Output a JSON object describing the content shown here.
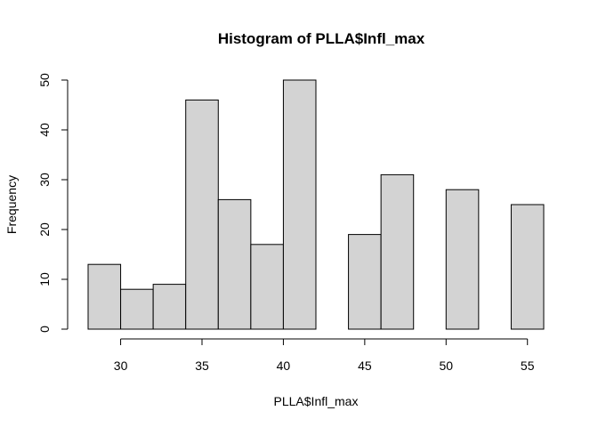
{
  "chart_data": {
    "type": "bar",
    "title": "Histogram of PLLA$Infl_max",
    "xlabel": "PLLA$Infl_max",
    "ylabel": "Frequency",
    "bins": [
      {
        "from": 28,
        "to": 30,
        "count": 13
      },
      {
        "from": 30,
        "to": 32,
        "count": 8
      },
      {
        "from": 32,
        "to": 34,
        "count": 9
      },
      {
        "from": 34,
        "to": 36,
        "count": 46
      },
      {
        "from": 36,
        "to": 38,
        "count": 26
      },
      {
        "from": 38,
        "to": 40,
        "count": 17
      },
      {
        "from": 40,
        "to": 42,
        "count": 50
      },
      {
        "from": 42,
        "to": 44,
        "count": 0
      },
      {
        "from": 44,
        "to": 46,
        "count": 19
      },
      {
        "from": 46,
        "to": 48,
        "count": 31
      },
      {
        "from": 48,
        "to": 50,
        "count": 0
      },
      {
        "from": 50,
        "to": 52,
        "count": 28
      },
      {
        "from": 52,
        "to": 54,
        "count": 0
      },
      {
        "from": 54,
        "to": 56,
        "count": 25
      }
    ],
    "xlim": [
      28,
      56
    ],
    "ylim": [
      0,
      50
    ],
    "x_ticks": [
      30,
      35,
      40,
      45,
      50,
      55
    ],
    "y_ticks": [
      0,
      10,
      20,
      30,
      40,
      50
    ],
    "grid": false,
    "bar_color": "#d3d3d3",
    "edge_color": "#000000"
  }
}
